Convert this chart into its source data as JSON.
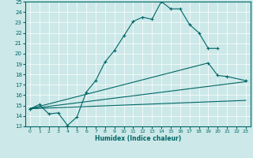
{
  "xlabel": "Humidex (Indice chaleur)",
  "xlim": [
    -0.5,
    23.5
  ],
  "ylim": [
    13,
    25
  ],
  "xticks": [
    0,
    1,
    2,
    3,
    4,
    5,
    6,
    7,
    8,
    9,
    10,
    11,
    12,
    13,
    14,
    15,
    16,
    17,
    18,
    19,
    20,
    21,
    22,
    23
  ],
  "yticks": [
    13,
    14,
    15,
    16,
    17,
    18,
    19,
    20,
    21,
    22,
    23,
    24,
    25
  ],
  "background_color": "#cce8e8",
  "line_color": "#006666",
  "line1": {
    "x": [
      0,
      1,
      2,
      3,
      4,
      5,
      6,
      7,
      8,
      9,
      10,
      11,
      12,
      13,
      14,
      15,
      16,
      17,
      18,
      19,
      20
    ],
    "y": [
      14.7,
      15.1,
      14.2,
      14.3,
      13.1,
      13.9,
      16.3,
      17.4,
      19.2,
      20.3,
      21.7,
      23.1,
      23.5,
      23.3,
      25.0,
      24.3,
      24.3,
      22.8,
      22.0,
      20.5,
      20.5
    ]
  },
  "line2": {
    "x": [
      0,
      19,
      20,
      21,
      23
    ],
    "y": [
      14.7,
      19.1,
      17.9,
      17.8,
      17.4
    ]
  },
  "line3": {
    "x": [
      0,
      23
    ],
    "y": [
      14.7,
      17.3
    ]
  },
  "line4": {
    "x": [
      0,
      23
    ],
    "y": [
      14.7,
      15.5
    ]
  }
}
